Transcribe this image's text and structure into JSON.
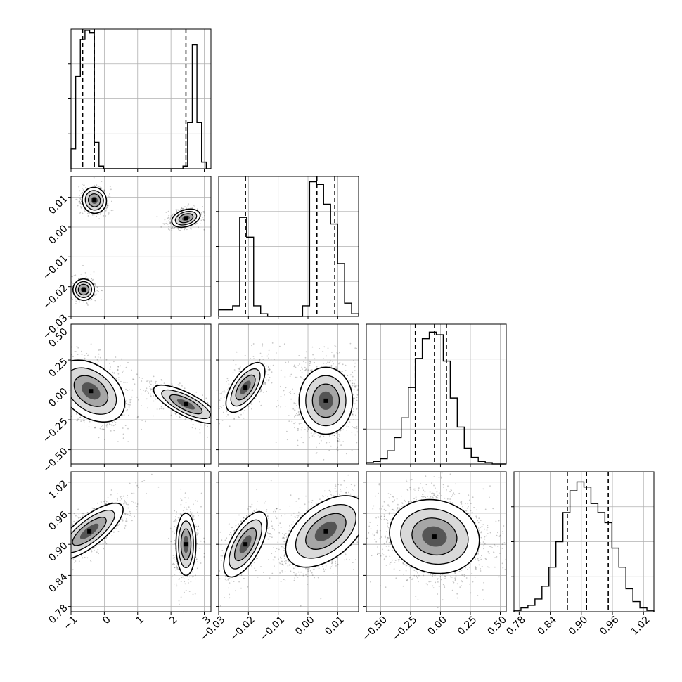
{
  "figure": {
    "type": "corner-plot"
  },
  "chart_data": {
    "type": "corner",
    "grid": true,
    "params": [
      {
        "range": [
          -1,
          3.2
        ],
        "ticks": [
          -1,
          0,
          1,
          2,
          3
        ],
        "tick_labels": [
          "−1",
          "0",
          "1",
          "2",
          "3"
        ],
        "quantiles": [
          -0.65,
          -0.3,
          2.45
        ],
        "hist_max": 1.06,
        "hist": [
          0.15,
          0.7,
          0.98,
          1.05,
          1.03,
          0.2,
          0.02,
          0,
          0,
          0,
          0,
          0,
          0,
          0,
          0,
          0,
          0,
          0,
          0,
          0,
          0,
          0,
          0,
          0,
          0.02,
          0.35,
          0.94,
          0.35,
          0.05,
          0
        ]
      },
      {
        "range": [
          -0.03,
          0.017
        ],
        "ticks": [
          -0.03,
          -0.02,
          -0.01,
          0.0,
          0.01
        ],
        "tick_labels": [
          "−0.03",
          "−0.02",
          "−0.01",
          "0.00",
          "0.01"
        ],
        "quantiles": [
          -0.021,
          0.003,
          0.009
        ],
        "hist_max": 1.06,
        "hist": [
          0.05,
          0.05,
          0.08,
          0.75,
          0.6,
          0.08,
          0.02,
          0,
          0,
          0,
          0,
          0,
          0.08,
          1.02,
          1.0,
          0.85,
          0.7,
          0.4,
          0.1,
          0.02
        ]
      },
      {
        "range": [
          -0.62,
          0.55
        ],
        "ticks": [
          -0.5,
          -0.25,
          0.0,
          0.25,
          0.5
        ],
        "tick_labels": [
          "−0.50",
          "−0.25",
          "0.00",
          "0.25",
          "0.50"
        ],
        "quantiles": [
          -0.21,
          -0.05,
          0.05
        ],
        "hist_max": 1.06,
        "hist": [
          0.01,
          0.02,
          0.04,
          0.1,
          0.2,
          0.35,
          0.58,
          0.8,
          0.95,
          1.0,
          0.98,
          0.78,
          0.5,
          0.28,
          0.12,
          0.05,
          0.02,
          0.01,
          0,
          0
        ]
      },
      {
        "range": [
          0.77,
          1.04
        ],
        "ticks": [
          0.78,
          0.84,
          0.9,
          0.96,
          1.02
        ],
        "tick_labels": [
          "0.78",
          "0.84",
          "0.90",
          "0.96",
          "1.02"
        ],
        "quantiles": [
          0.873,
          0.91,
          0.952
        ],
        "hist_max": 1.1,
        "hist": [
          0.01,
          0.03,
          0.05,
          0.1,
          0.2,
          0.35,
          0.55,
          0.78,
          0.95,
          1.02,
          0.98,
          0.85,
          0.78,
          0.7,
          0.5,
          0.35,
          0.18,
          0.08,
          0.03,
          0.01
        ]
      }
    ],
    "pairs": [
      {
        "row": 1,
        "col": 0,
        "clusters": [
          {
            "cx": -0.3,
            "cy": 0.009,
            "sx": 0.18,
            "sy": 0.0022,
            "rot": -0.3,
            "n": 500
          },
          {
            "cx": -0.62,
            "cy": -0.021,
            "sx": 0.16,
            "sy": 0.0018,
            "rot": 0.1,
            "n": 350
          },
          {
            "cx": 2.45,
            "cy": 0.003,
            "sx": 0.22,
            "sy": 0.0014,
            "rot": -0.3,
            "n": 550
          }
        ]
      },
      {
        "row": 2,
        "col": 0,
        "clusters": [
          {
            "cx": -0.4,
            "cy": -0.01,
            "sx": 0.38,
            "sy": 0.16,
            "rot": -0.9,
            "n": 1100
          },
          {
            "cx": 2.45,
            "cy": -0.12,
            "sx": 0.17,
            "sy": 0.15,
            "rot": -1.1,
            "n": 700
          }
        ]
      },
      {
        "row": 2,
        "col": 1,
        "clusters": [
          {
            "cx": -0.021,
            "cy": 0.02,
            "sx": 0.0022,
            "sy": 0.12,
            "rot": 0.6,
            "n": 500
          },
          {
            "cx": 0.006,
            "cy": -0.09,
            "sx": 0.0045,
            "sy": 0.14,
            "rot": 0.0,
            "n": 1300
          }
        ]
      },
      {
        "row": 3,
        "col": 0,
        "clusters": [
          {
            "cx": -0.45,
            "cy": 0.925,
            "sx": 0.22,
            "sy": 0.04,
            "rot": 0.9,
            "n": 1100
          },
          {
            "cx": 2.45,
            "cy": 0.9,
            "sx": 0.15,
            "sy": 0.03,
            "rot": 0.0,
            "n": 700
          }
        ]
      },
      {
        "row": 3,
        "col": 1,
        "clusters": [
          {
            "cx": -0.021,
            "cy": 0.9,
            "sx": 0.0025,
            "sy": 0.035,
            "rot": 0.5,
            "n": 500
          },
          {
            "cx": 0.006,
            "cy": 0.925,
            "sx": 0.0045,
            "sy": 0.045,
            "rot": 0.9,
            "n": 1300
          }
        ]
      },
      {
        "row": 3,
        "col": 2,
        "clusters": [
          {
            "cx": -0.05,
            "cy": 0.915,
            "sx": 0.19,
            "sy": 0.035,
            "rot": 0.25,
            "n": 1900
          }
        ]
      }
    ]
  }
}
